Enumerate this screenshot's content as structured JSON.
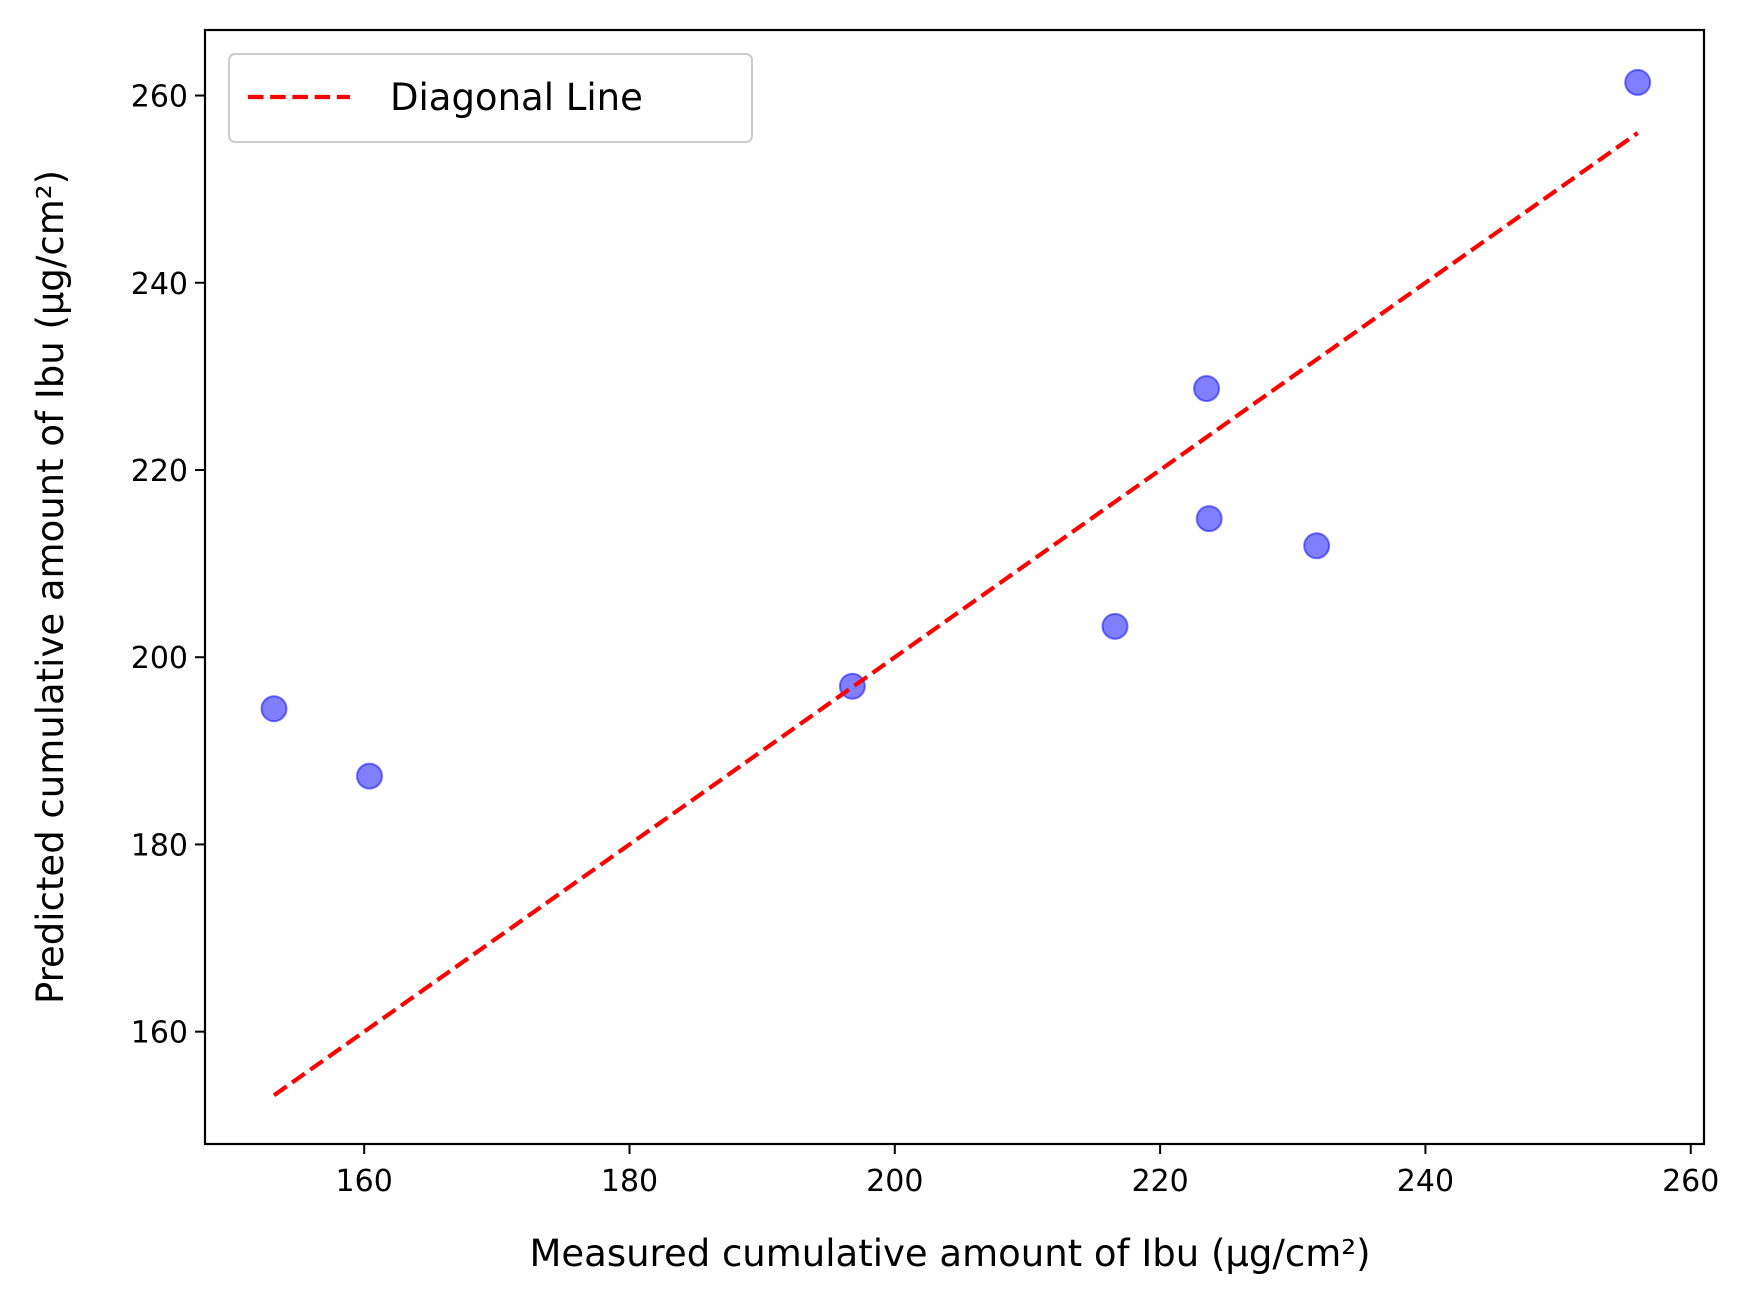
{
  "chart_data": {
    "type": "scatter",
    "title": "",
    "xlabel": "Measured cumulative amount of Ibu (μg/cm²)",
    "ylabel": "Predicted cumulative amount of Ibu (μg/cm²)",
    "xlim": [
      148,
      261
    ],
    "ylim": [
      148,
      267
    ],
    "x_ticks": [
      160,
      180,
      200,
      220,
      240,
      260
    ],
    "y_ticks": [
      160,
      180,
      200,
      220,
      240,
      260
    ],
    "grid": false,
    "legend_position": "upper-left",
    "series": [
      {
        "kind": "scatter",
        "color": "#0000ff",
        "opacity": 0.5,
        "points": [
          {
            "x": 153.2,
            "y": 194.5
          },
          {
            "x": 160.4,
            "y": 187.3
          },
          {
            "x": 196.8,
            "y": 196.9
          },
          {
            "x": 216.6,
            "y": 203.3
          },
          {
            "x": 223.5,
            "y": 228.7
          },
          {
            "x": 223.7,
            "y": 214.8
          },
          {
            "x": 231.8,
            "y": 211.9
          },
          {
            "x": 256.0,
            "y": 261.4
          }
        ]
      },
      {
        "kind": "line",
        "name": "Diagonal Line",
        "color": "#ff0000",
        "style": "dashed",
        "points": [
          {
            "x": 153.2,
            "y": 153.2
          },
          {
            "x": 256.0,
            "y": 256.0
          }
        ]
      }
    ]
  }
}
